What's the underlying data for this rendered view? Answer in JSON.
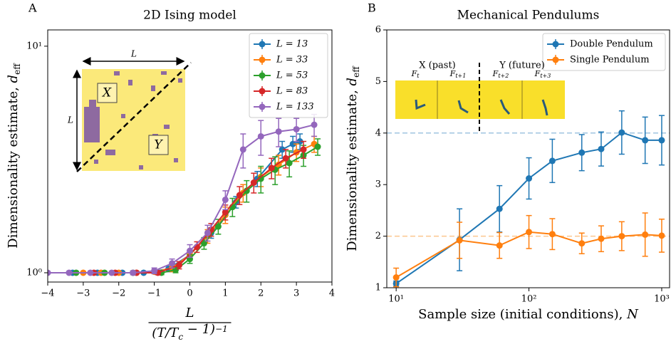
{
  "chart_data": [
    {
      "panel": "A",
      "type": "line",
      "title": "2D Ising model",
      "xlabel_numerator": "L",
      "xlabel_denominator": [
        "(T/T",
        "c",
        " − 1)",
        "−1"
      ],
      "ylabel": "Dimensionality estimate, ",
      "ylabel_var": "d",
      "ylabel_sub": "eff",
      "xlim": [
        -4,
        4
      ],
      "xticks": [
        {
          "value": -4,
          "label": "−4"
        },
        {
          "value": -3,
          "label": "−3"
        },
        {
          "value": -2,
          "label": "−2"
        },
        {
          "value": -1,
          "label": "−1"
        },
        0,
        1,
        2,
        3,
        4
      ],
      "yscale": "log",
      "ylim": [
        0.91,
        11.8
      ],
      "yticks": [
        {
          "value": 1,
          "label": "10⁰"
        },
        {
          "value": 10,
          "label": "10¹"
        }
      ],
      "legend": "upper right",
      "inset_labels": [
        "L",
        "L",
        "X",
        "Y"
      ],
      "series": [
        {
          "name": "L = 13",
          "color": "#1f77b4",
          "x": [
            -3.3,
            -2.6,
            -1.9,
            -1.3,
            -0.6,
            0.0,
            0.6,
            1.3,
            1.9,
            2.6,
            2.9,
            3.1
          ],
          "values": [
            1,
            1,
            1,
            1,
            1.04,
            1.2,
            1.5,
            2.05,
            2.6,
            3.5,
            3.7,
            3.8
          ],
          "errors": [
            0.01,
            0.01,
            0.01,
            0.01,
            0.03,
            0.05,
            0.08,
            0.12,
            0.2,
            0.3,
            0.3,
            0.3
          ]
        },
        {
          "name": "L = 33",
          "color": "#ff7f0e",
          "x": [
            -3.0,
            -2.5,
            -2.0,
            -1.5,
            -1.0,
            -0.5,
            0.0,
            0.5,
            1.0,
            1.5,
            2.0,
            2.5,
            3.0,
            3.5
          ],
          "values": [
            1,
            1,
            1,
            1,
            1.01,
            1.05,
            1.2,
            1.45,
            1.8,
            2.25,
            2.65,
            3.0,
            3.4,
            3.7
          ],
          "errors": [
            0.01,
            0.01,
            0.01,
            0.01,
            0.02,
            0.04,
            0.06,
            0.1,
            0.15,
            0.2,
            0.25,
            0.3,
            0.3,
            0.3
          ]
        },
        {
          "name": "L = 53",
          "color": "#2ca02c",
          "x": [
            -3.2,
            -2.4,
            -1.6,
            -0.8,
            -0.4,
            0.0,
            0.4,
            0.8,
            1.2,
            1.6,
            2.0,
            2.4,
            2.8,
            3.2,
            3.6
          ],
          "values": [
            1,
            1,
            1,
            1,
            1.03,
            1.15,
            1.35,
            1.6,
            1.95,
            2.3,
            2.6,
            2.85,
            3.05,
            3.3,
            3.6
          ],
          "errors": [
            0.01,
            0.01,
            0.01,
            0.02,
            0.03,
            0.05,
            0.08,
            0.12,
            0.18,
            0.25,
            0.35,
            0.4,
            0.4,
            0.35,
            0.3
          ]
        },
        {
          "name": "L = 83",
          "color": "#d62728",
          "x": [
            -2.7,
            -2.1,
            -1.5,
            -0.9,
            -0.3,
            0.2,
            0.6,
            1.0,
            1.4,
            1.8,
            2.3,
            2.7,
            3.2
          ],
          "values": [
            1,
            1,
            1,
            1,
            1.08,
            1.3,
            1.55,
            1.85,
            2.2,
            2.5,
            2.9,
            3.2,
            3.5
          ],
          "errors": [
            0.01,
            0.01,
            0.01,
            0.02,
            0.04,
            0.07,
            0.1,
            0.14,
            0.2,
            0.25,
            0.3,
            0.3,
            0.3
          ]
        },
        {
          "name": "L = 133",
          "color": "#9467bd",
          "x": [
            -4.0,
            -3.4,
            -2.8,
            -2.2,
            -1.6,
            -1.0,
            -0.5,
            0.0,
            0.5,
            1.0,
            1.5,
            2.0,
            2.5,
            3.0,
            3.5
          ],
          "values": [
            1,
            1,
            1,
            1,
            1,
            1.02,
            1.1,
            1.25,
            1.5,
            2.1,
            3.5,
            4.0,
            4.2,
            4.3,
            4.5
          ],
          "errors": [
            0.01,
            0.01,
            0.01,
            0.01,
            0.02,
            0.03,
            0.05,
            0.08,
            0.12,
            0.2,
            0.6,
            0.7,
            0.6,
            0.5,
            0.5
          ]
        }
      ]
    },
    {
      "panel": "B",
      "type": "line",
      "title": "Mechanical Pendulums",
      "xlabel": "Sample size (initial conditions), ",
      "xlabel_var": "N",
      "ylabel": "Dimensionality estimate, ",
      "ylabel_var": "d",
      "ylabel_sub": "eff",
      "xscale": "log",
      "xlim": [
        8.5,
        1146
      ],
      "xticks": [
        {
          "value": 10,
          "label": "10¹"
        },
        {
          "value": 100,
          "label": "10²"
        },
        {
          "value": 1000,
          "label": "10³"
        }
      ],
      "ylim": [
        1,
        6
      ],
      "yticks": [
        1,
        2,
        3,
        4,
        5,
        6
      ],
      "hlines": [
        {
          "value": 4,
          "color": "#9fc4e0"
        },
        {
          "value": 2,
          "color": "#fcc68f"
        }
      ],
      "legend": "upper right",
      "inset_labels": [
        "X (past)",
        "Y (future)",
        "F",
        "t",
        "F",
        "t+1",
        "F",
        "t+2",
        "F",
        "t+3"
      ],
      "series": [
        {
          "name": "Double Pendulum",
          "color": "#1f77b4",
          "x": [
            10,
            30,
            60,
            100,
            150,
            250,
            350,
            500,
            750,
            1000
          ],
          "values": [
            1.08,
            1.93,
            2.53,
            3.12,
            3.46,
            3.62,
            3.69,
            4.01,
            3.86,
            3.86
          ],
          "errors": [
            0.05,
            0.6,
            0.45,
            0.4,
            0.42,
            0.35,
            0.33,
            0.42,
            0.45,
            0.48
          ]
        },
        {
          "name": "Single Pendulum",
          "color": "#ff7f0e",
          "x": [
            10,
            30,
            60,
            100,
            150,
            250,
            350,
            500,
            750,
            1000
          ],
          "values": [
            1.2,
            1.92,
            1.82,
            2.08,
            2.04,
            1.86,
            1.95,
            2.0,
            2.03,
            2.01
          ],
          "errors": [
            0.18,
            0.35,
            0.25,
            0.32,
            0.3,
            0.2,
            0.25,
            0.28,
            0.42,
            0.32
          ]
        }
      ]
    }
  ]
}
